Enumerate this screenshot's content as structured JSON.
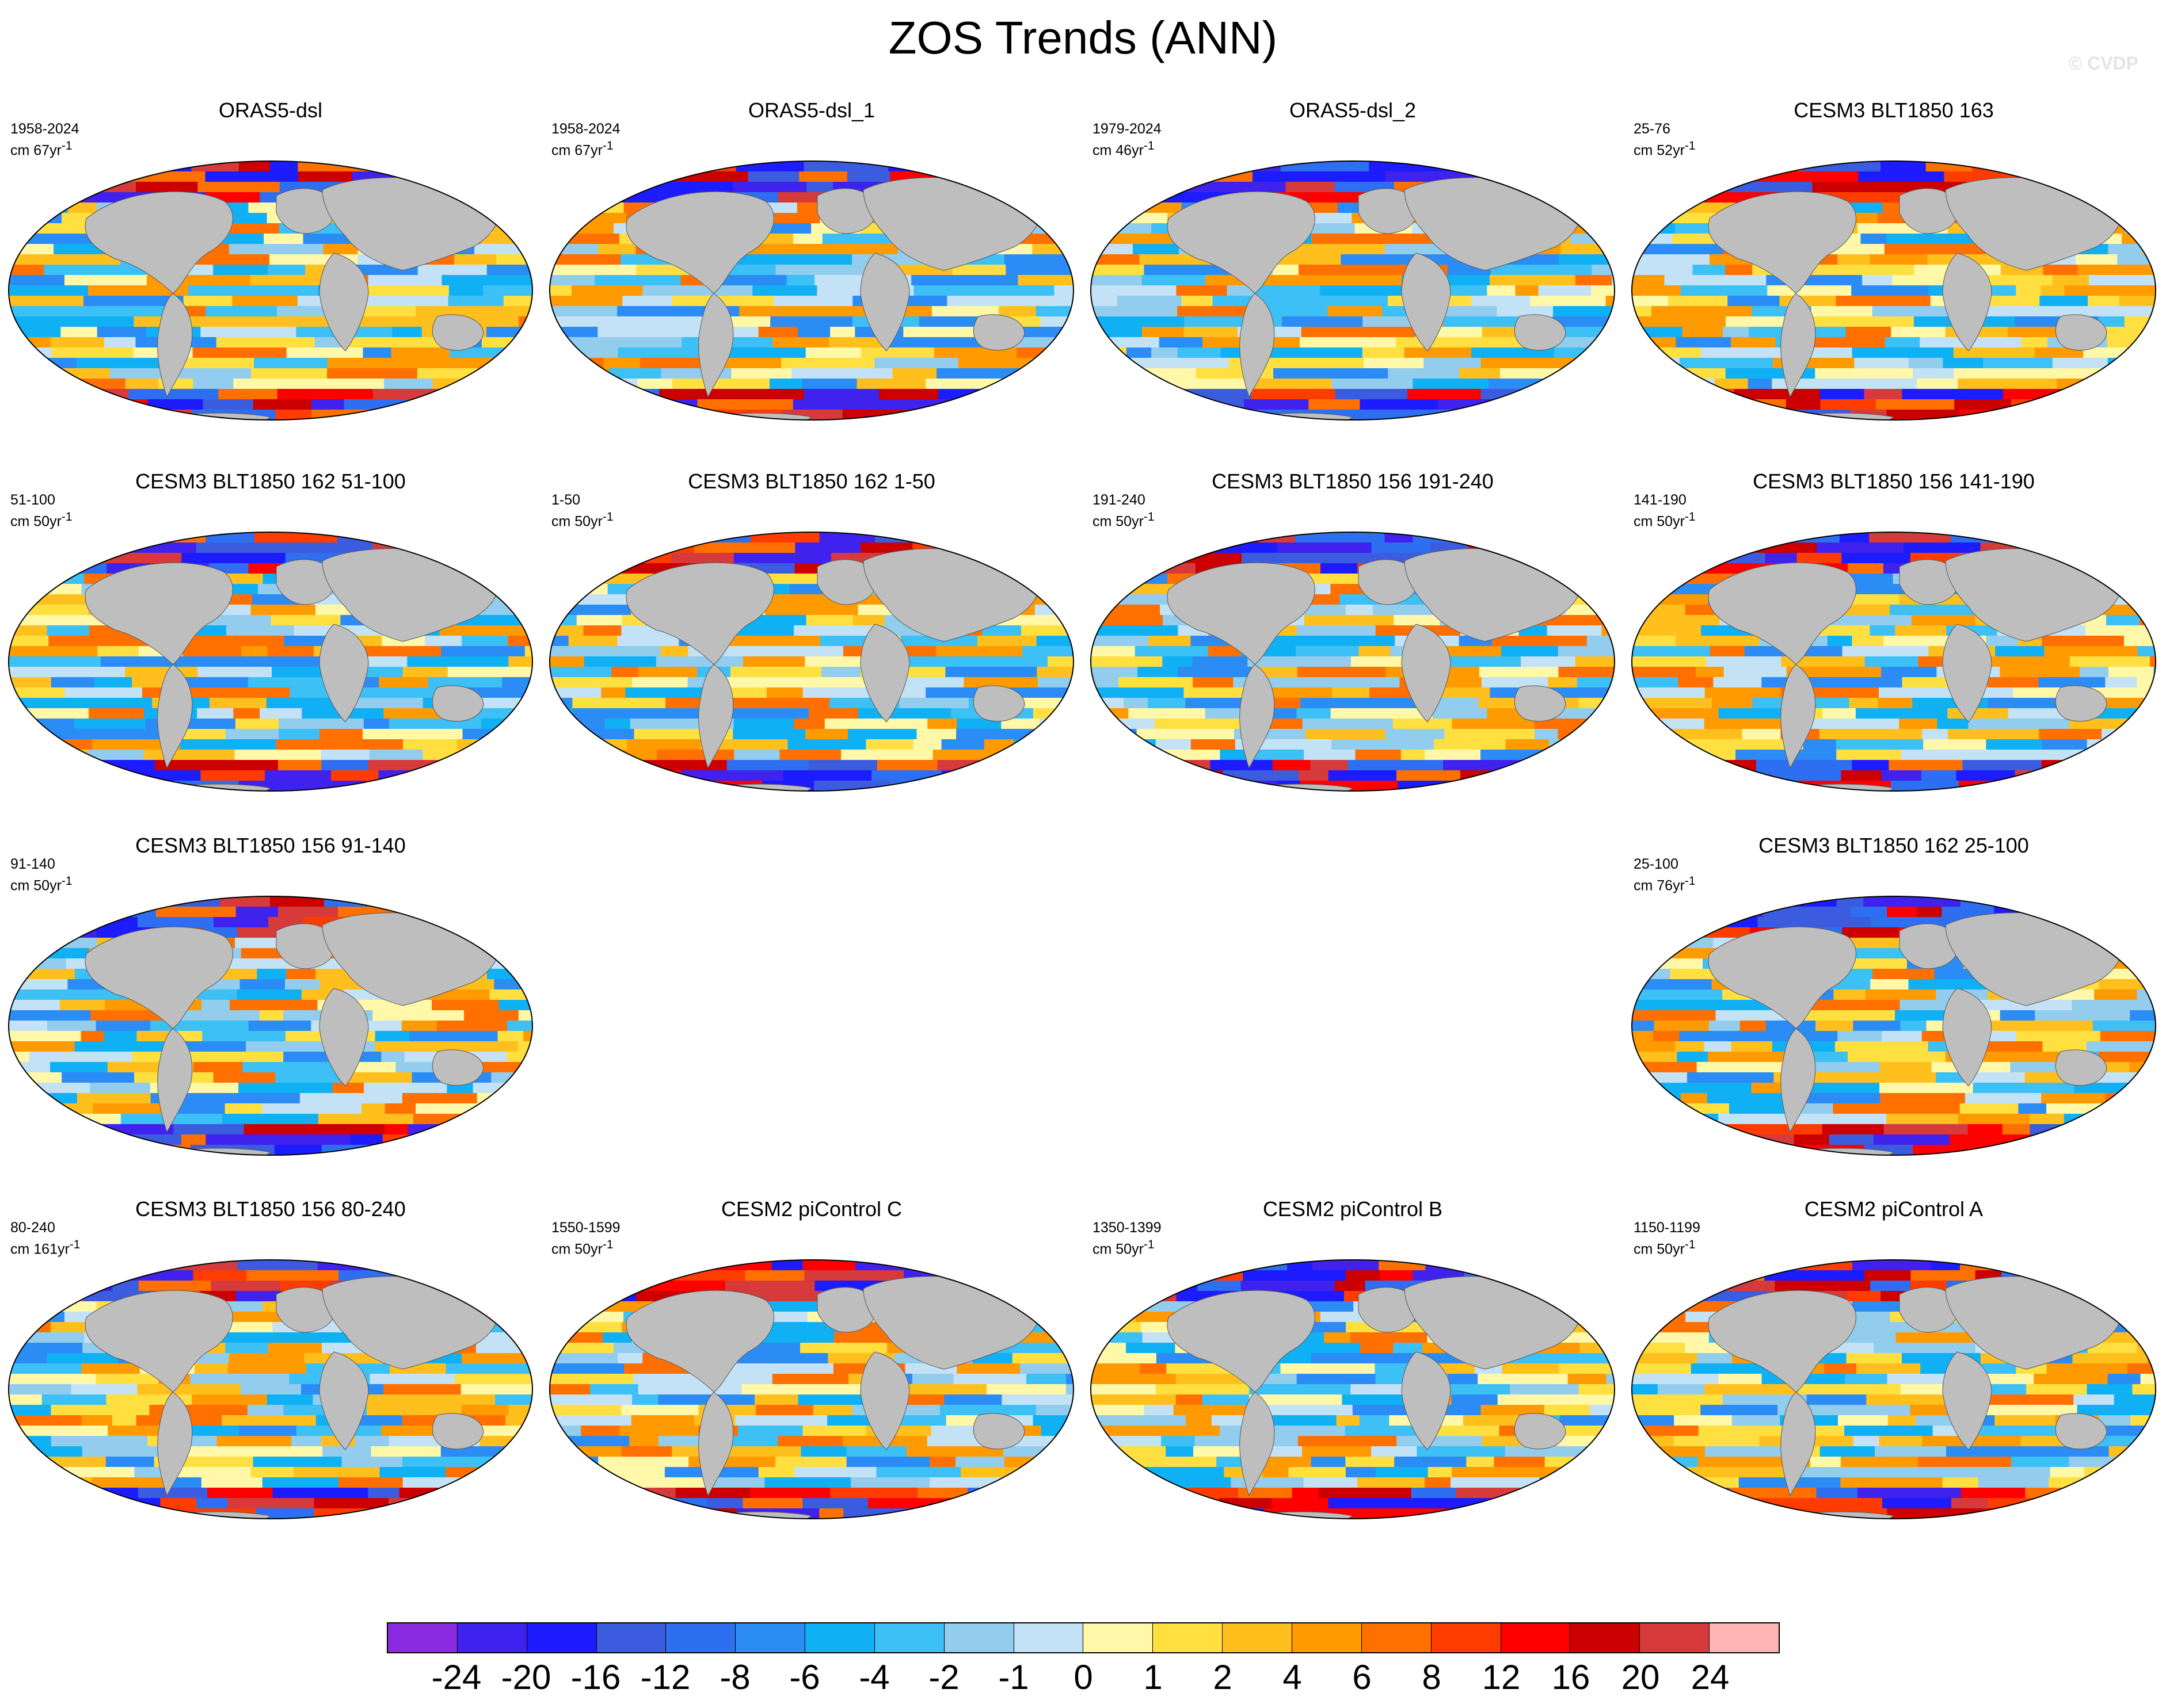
{
  "title": "ZOS Trends (ANN)",
  "watermark": "© CVDP",
  "panels": [
    {
      "title": "ORAS5-dsl",
      "period": "1958-2024",
      "units_prefix": "cm 67yr",
      "units_sup": "-1"
    },
    {
      "title": "ORAS5-dsl_1",
      "period": "1958-2024",
      "units_prefix": "cm 67yr",
      "units_sup": "-1"
    },
    {
      "title": "ORAS5-dsl_2",
      "period": "1979-2024",
      "units_prefix": "cm 46yr",
      "units_sup": "-1"
    },
    {
      "title": "CESM3 BLT1850 163",
      "period": "25-76",
      "units_prefix": "cm 52yr",
      "units_sup": "-1"
    },
    {
      "title": "CESM3 BLT1850 162 51-100",
      "period": "51-100",
      "units_prefix": "cm 50yr",
      "units_sup": "-1"
    },
    {
      "title": "CESM3 BLT1850 162 1-50",
      "period": "1-50",
      "units_prefix": "cm 50yr",
      "units_sup": "-1"
    },
    {
      "title": "CESM3 BLT1850 156 191-240",
      "period": "191-240",
      "units_prefix": "cm 50yr",
      "units_sup": "-1"
    },
    {
      "title": "CESM3 BLT1850 156 141-190",
      "period": "141-190",
      "units_prefix": "cm 50yr",
      "units_sup": "-1"
    },
    {
      "title": "CESM3 BLT1850 156 91-140",
      "period": "91-140",
      "units_prefix": "cm 50yr",
      "units_sup": "-1"
    },
    {
      "title": "CESM3 BLT1850 162 25-100",
      "period": "25-100",
      "units_prefix": "cm 76yr",
      "units_sup": "-1"
    },
    {
      "title": "CESM3 BLT1850 156 80-240",
      "period": "80-240",
      "units_prefix": "cm 161yr",
      "units_sup": "-1"
    },
    {
      "title": "CESM2 piControl C",
      "period": "1550-1599",
      "units_prefix": "cm 50yr",
      "units_sup": "-1"
    },
    {
      "title": "CESM2 piControl B",
      "period": "1350-1399",
      "units_prefix": "cm 50yr",
      "units_sup": "-1"
    },
    {
      "title": "CESM2 piControl A",
      "period": "1150-1199",
      "units_prefix": "cm 50yr",
      "units_sup": "-1"
    }
  ],
  "colorbar": {
    "labels": [
      "-24",
      "-20",
      "-16",
      "-12",
      "-8",
      "-6",
      "-4",
      "-2",
      "-1",
      "0",
      "1",
      "2",
      "4",
      "6",
      "8",
      "12",
      "16",
      "20",
      "24"
    ],
    "colors": [
      "#8a2be2",
      "#3f22ee",
      "#1c1cff",
      "#3c5ce0",
      "#2e6ef0",
      "#2b8cf5",
      "#10b0f5",
      "#3cc0f5",
      "#92cdee",
      "#c4e2f6",
      "#fff8a8",
      "#ffe040",
      "#ffc01e",
      "#ff9a00",
      "#ff7000",
      "#ff3c00",
      "#ff0000",
      "#cc0000",
      "#d63a3a",
      "#ffb4b4"
    ]
  },
  "land_color": "#bebebe"
}
